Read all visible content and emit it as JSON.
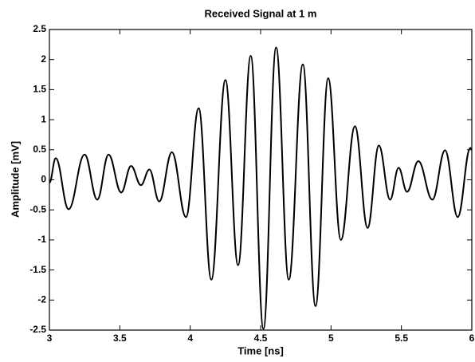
{
  "chart_data": {
    "type": "line",
    "title": "Received Signal at 1 m",
    "xlabel": "Time [ns]",
    "ylabel": "Amplitude [mV]",
    "x": [
      3.0,
      3.045,
      3.136,
      3.25,
      3.34,
      3.42,
      3.51,
      3.58,
      3.65,
      3.71,
      3.78,
      3.87,
      3.97,
      4.06,
      4.15,
      4.25,
      4.34,
      4.43,
      4.52,
      4.61,
      4.7,
      4.8,
      4.89,
      4.98,
      5.07,
      5.17,
      5.26,
      5.34,
      5.42,
      5.48,
      5.54,
      5.62,
      5.72,
      5.81,
      5.9,
      5.99,
      6.0
    ],
    "series": [
      {
        "color": "#000000",
        "values": [
          -0.05,
          0.36,
          -0.49,
          0.42,
          -0.33,
          0.42,
          -0.21,
          0.23,
          -0.09,
          0.17,
          -0.36,
          0.46,
          -0.62,
          1.19,
          -1.66,
          1.66,
          -1.42,
          2.06,
          -2.48,
          2.2,
          -1.66,
          1.92,
          -2.1,
          1.69,
          -1.0,
          0.89,
          -0.8,
          0.57,
          -0.33,
          0.2,
          -0.2,
          0.31,
          -0.33,
          0.49,
          -0.62,
          0.53,
          0.5
        ]
      }
    ],
    "xlim": [
      3,
      6
    ],
    "ylim": [
      -2.5,
      2.5
    ],
    "xticks": [
      3,
      3.5,
      4,
      4.5,
      5,
      5.5,
      6
    ],
    "yticks": [
      -2.5,
      -2,
      -1.5,
      -1,
      -0.5,
      0,
      0.5,
      1,
      1.5,
      2,
      2.5
    ],
    "grid": false
  }
}
